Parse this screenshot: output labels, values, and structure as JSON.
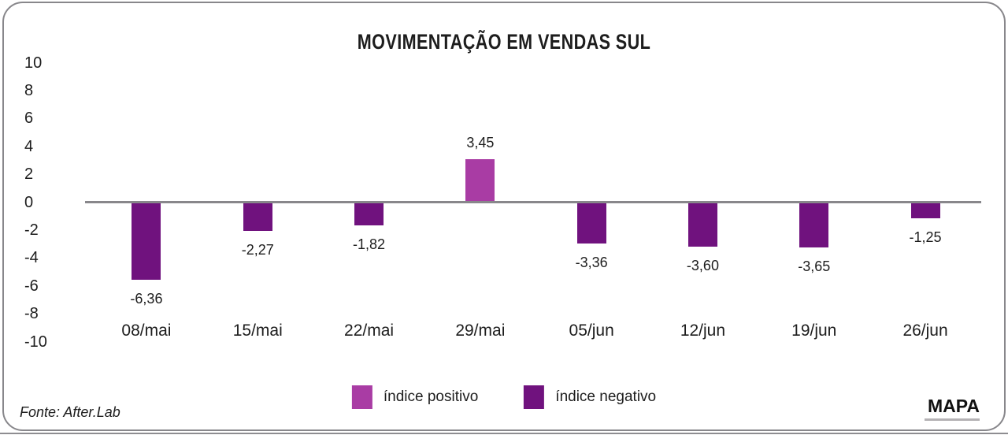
{
  "chart_data": {
    "type": "bar",
    "title": "MOVIMENTAÇÃO EM VENDAS SUL",
    "categories": [
      "08/mai",
      "15/mai",
      "22/mai",
      "29/mai",
      "05/jun",
      "12/jun",
      "19/jun",
      "26/jun"
    ],
    "values": [
      -6.36,
      -2.27,
      -1.82,
      3.45,
      -3.36,
      -3.6,
      -3.65,
      -1.25
    ],
    "value_labels": [
      "-6,36",
      "-2,27",
      "-1,82",
      "3,45",
      "-3,36",
      "-3,60",
      "-3,65",
      "-1,25"
    ],
    "yticks": [
      10,
      8,
      6,
      4,
      2,
      0,
      -2,
      -4,
      -6,
      -8,
      -10
    ],
    "ylim": [
      -10,
      10
    ],
    "xlabel": "",
    "ylabel": "",
    "grid": false,
    "colors": {
      "positive": "#a93ca4",
      "negative": "#70127e",
      "axis": "#88878b",
      "text": "#1d1d1d"
    },
    "legend": {
      "position": "bottom",
      "items": [
        {
          "label": "índice positivo",
          "color": "#a93ca4"
        },
        {
          "label": "índice negativo",
          "color": "#70127e"
        }
      ]
    }
  },
  "footer": {
    "source": "Fonte: After.Lab",
    "brand": "MAPA"
  }
}
